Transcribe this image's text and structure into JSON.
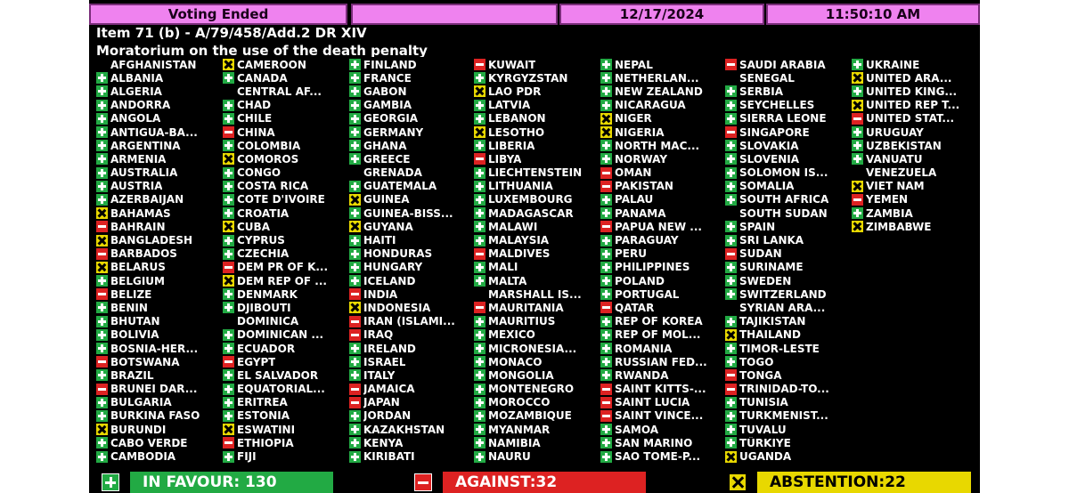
{
  "header": {
    "status": "Voting Ended",
    "date": "12/17/2024",
    "time": "11:50:10 AM"
  },
  "item": {
    "line1": "Item 71 (b) - A/79/458/Add.2 DR XIV",
    "line2": "Moratorium on the use of the death penalty"
  },
  "colors": {
    "favour": "#22aa44",
    "against": "#dd2222",
    "abstention": "#e8d800",
    "header": "#ef82ef"
  },
  "icons": {
    "Y": "plus-icon",
    "N": "minus-icon",
    "A": "x-icon",
    "": "none"
  },
  "columns": [
    [
      [
        "AFGHANISTAN",
        ""
      ],
      [
        "ALBANIA",
        "Y"
      ],
      [
        "ALGERIA",
        "Y"
      ],
      [
        "ANDORRA",
        "Y"
      ],
      [
        "ANGOLA",
        "Y"
      ],
      [
        "ANTIGUA-BA...",
        "Y"
      ],
      [
        "ARGENTINA",
        "Y"
      ],
      [
        "ARMENIA",
        "Y"
      ],
      [
        "AUSTRALIA",
        "Y"
      ],
      [
        "AUSTRIA",
        "Y"
      ],
      [
        "AZERBAIJAN",
        "Y"
      ],
      [
        "BAHAMAS",
        "A"
      ],
      [
        "BAHRAIN",
        "N"
      ],
      [
        "BANGLADESH",
        "A"
      ],
      [
        "BARBADOS",
        "N"
      ],
      [
        "BELARUS",
        "A"
      ],
      [
        "BELGIUM",
        "Y"
      ],
      [
        "BELIZE",
        "N"
      ],
      [
        "BENIN",
        "Y"
      ],
      [
        "BHUTAN",
        "Y"
      ],
      [
        "BOLIVIA",
        "Y"
      ],
      [
        "BOSNIA-HER...",
        "Y"
      ],
      [
        "BOTSWANA",
        "N"
      ],
      [
        "BRAZIL",
        "Y"
      ],
      [
        "BRUNEI DAR...",
        "N"
      ],
      [
        "BULGARIA",
        "Y"
      ],
      [
        "BURKINA FASO",
        "Y"
      ],
      [
        "BURUNDI",
        "A"
      ],
      [
        "CABO VERDE",
        "Y"
      ],
      [
        "CAMBODIA",
        "Y"
      ]
    ],
    [
      [
        "CAMEROON",
        "A"
      ],
      [
        "CANADA",
        "Y"
      ],
      [
        "CENTRAL AF...",
        ""
      ],
      [
        "CHAD",
        "Y"
      ],
      [
        "CHILE",
        "Y"
      ],
      [
        "CHINA",
        "N"
      ],
      [
        "COLOMBIA",
        "Y"
      ],
      [
        "COMOROS",
        "A"
      ],
      [
        "CONGO",
        "Y"
      ],
      [
        "COSTA RICA",
        "Y"
      ],
      [
        "COTE D'IVOIRE",
        "Y"
      ],
      [
        "CROATIA",
        "Y"
      ],
      [
        "CUBA",
        "A"
      ],
      [
        "CYPRUS",
        "Y"
      ],
      [
        "CZECHIA",
        "Y"
      ],
      [
        "DEM PR OF K...",
        "N"
      ],
      [
        "DEM REP OF ...",
        "A"
      ],
      [
        "DENMARK",
        "Y"
      ],
      [
        "DJIBOUTI",
        "Y"
      ],
      [
        "DOMINICA",
        ""
      ],
      [
        "DOMINICAN ...",
        "Y"
      ],
      [
        "ECUADOR",
        "Y"
      ],
      [
        "EGYPT",
        "N"
      ],
      [
        "EL SALVADOR",
        "Y"
      ],
      [
        "EQUATORIAL...",
        "Y"
      ],
      [
        "ERITREA",
        "Y"
      ],
      [
        "ESTONIA",
        "Y"
      ],
      [
        "ESWATINI",
        "A"
      ],
      [
        "ETHIOPIA",
        "N"
      ],
      [
        "FIJI",
        "Y"
      ]
    ],
    [
      [
        "FINLAND",
        "Y"
      ],
      [
        "FRANCE",
        "Y"
      ],
      [
        "GABON",
        "Y"
      ],
      [
        "GAMBIA",
        "Y"
      ],
      [
        "GEORGIA",
        "Y"
      ],
      [
        "GERMANY",
        "Y"
      ],
      [
        "GHANA",
        "Y"
      ],
      [
        "GREECE",
        "Y"
      ],
      [
        "GRENADA",
        ""
      ],
      [
        "GUATEMALA",
        "Y"
      ],
      [
        "GUINEA",
        "A"
      ],
      [
        "GUINEA-BISS...",
        "Y"
      ],
      [
        "GUYANA",
        "A"
      ],
      [
        "HAITI",
        "Y"
      ],
      [
        "HONDURAS",
        "Y"
      ],
      [
        "HUNGARY",
        "Y"
      ],
      [
        "ICELAND",
        "Y"
      ],
      [
        "INDIA",
        "N"
      ],
      [
        "INDONESIA",
        "A"
      ],
      [
        "IRAN (ISLAMI...",
        "N"
      ],
      [
        "IRAQ",
        "N"
      ],
      [
        "IRELAND",
        "Y"
      ],
      [
        "ISRAEL",
        "Y"
      ],
      [
        "ITALY",
        "Y"
      ],
      [
        "JAMAICA",
        "N"
      ],
      [
        "JAPAN",
        "N"
      ],
      [
        "JORDAN",
        "Y"
      ],
      [
        "KAZAKHSTAN",
        "Y"
      ],
      [
        "KENYA",
        "Y"
      ],
      [
        "KIRIBATI",
        "Y"
      ]
    ],
    [
      [
        "KUWAIT",
        "N"
      ],
      [
        "KYRGYZSTAN",
        "Y"
      ],
      [
        "LAO PDR",
        "A"
      ],
      [
        "LATVIA",
        "Y"
      ],
      [
        "LEBANON",
        "Y"
      ],
      [
        "LESOTHO",
        "A"
      ],
      [
        "LIBERIA",
        "Y"
      ],
      [
        "LIBYA",
        "N"
      ],
      [
        "LIECHTENSTEIN",
        "Y"
      ],
      [
        "LITHUANIA",
        "Y"
      ],
      [
        "LUXEMBOURG",
        "Y"
      ],
      [
        "MADAGASCAR",
        "Y"
      ],
      [
        "MALAWI",
        "Y"
      ],
      [
        "MALAYSIA",
        "Y"
      ],
      [
        "MALDIVES",
        "N"
      ],
      [
        "MALI",
        "Y"
      ],
      [
        "MALTA",
        "Y"
      ],
      [
        "MARSHALL IS...",
        ""
      ],
      [
        "MAURITANIA",
        "N"
      ],
      [
        "MAURITIUS",
        "Y"
      ],
      [
        "MEXICO",
        "Y"
      ],
      [
        "MICRONESIA...",
        "Y"
      ],
      [
        "MONACO",
        "Y"
      ],
      [
        "MONGOLIA",
        "Y"
      ],
      [
        "MONTENEGRO",
        "Y"
      ],
      [
        "MOROCCO",
        "Y"
      ],
      [
        "MOZAMBIQUE",
        "Y"
      ],
      [
        "MYANMAR",
        "Y"
      ],
      [
        "NAMIBIA",
        "Y"
      ],
      [
        "NAURU",
        "Y"
      ]
    ],
    [
      [
        "NEPAL",
        "Y"
      ],
      [
        "NETHERLAN...",
        "Y"
      ],
      [
        "NEW ZEALAND",
        "Y"
      ],
      [
        "NICARAGUA",
        "Y"
      ],
      [
        "NIGER",
        "A"
      ],
      [
        "NIGERIA",
        "A"
      ],
      [
        "NORTH MAC...",
        "Y"
      ],
      [
        "NORWAY",
        "Y"
      ],
      [
        "OMAN",
        "N"
      ],
      [
        "PAKISTAN",
        "N"
      ],
      [
        "PALAU",
        "Y"
      ],
      [
        "PANAMA",
        "Y"
      ],
      [
        "PAPUA NEW ...",
        "N"
      ],
      [
        "PARAGUAY",
        "Y"
      ],
      [
        "PERU",
        "Y"
      ],
      [
        "PHILIPPINES",
        "Y"
      ],
      [
        "POLAND",
        "Y"
      ],
      [
        "PORTUGAL",
        "Y"
      ],
      [
        "QATAR",
        "N"
      ],
      [
        "REP OF KOREA",
        "Y"
      ],
      [
        "REP OF MOL...",
        "Y"
      ],
      [
        "ROMANIA",
        "Y"
      ],
      [
        "RUSSIAN FED...",
        "Y"
      ],
      [
        "RWANDA",
        "Y"
      ],
      [
        "SAINT KITTS-...",
        "N"
      ],
      [
        "SAINT LUCIA",
        "N"
      ],
      [
        "SAINT VINCE...",
        "N"
      ],
      [
        "SAMOA",
        "Y"
      ],
      [
        "SAN MARINO",
        "Y"
      ],
      [
        "SAO TOME-P...",
        "Y"
      ]
    ],
    [
      [
        "SAUDI ARABIA",
        "N"
      ],
      [
        "SENEGAL",
        ""
      ],
      [
        "SERBIA",
        "Y"
      ],
      [
        "SEYCHELLES",
        "Y"
      ],
      [
        "SIERRA LEONE",
        "Y"
      ],
      [
        "SINGAPORE",
        "N"
      ],
      [
        "SLOVAKIA",
        "Y"
      ],
      [
        "SLOVENIA",
        "Y"
      ],
      [
        "SOLOMON IS...",
        "Y"
      ],
      [
        "SOMALIA",
        "Y"
      ],
      [
        "SOUTH AFRICA",
        "Y"
      ],
      [
        "SOUTH SUDAN",
        ""
      ],
      [
        "SPAIN",
        "Y"
      ],
      [
        "SRI LANKA",
        "Y"
      ],
      [
        "SUDAN",
        "N"
      ],
      [
        "SURINAME",
        "Y"
      ],
      [
        "SWEDEN",
        "Y"
      ],
      [
        "SWITZERLAND",
        "Y"
      ],
      [
        "SYRIAN ARA...",
        ""
      ],
      [
        "TAJIKISTAN",
        "Y"
      ],
      [
        "THAILAND",
        "A"
      ],
      [
        "TIMOR-LESTE",
        "Y"
      ],
      [
        "TOGO",
        "Y"
      ],
      [
        "TONGA",
        "N"
      ],
      [
        "TRINIDAD-TO...",
        "N"
      ],
      [
        "TUNISIA",
        "Y"
      ],
      [
        "TURKMENIST...",
        "Y"
      ],
      [
        "TUVALU",
        "Y"
      ],
      [
        "TÜRKIYE",
        "Y"
      ],
      [
        "UGANDA",
        "A"
      ]
    ],
    [
      [
        "UKRAINE",
        "Y"
      ],
      [
        "UNITED ARA...",
        "A"
      ],
      [
        "UNITED KING...",
        "Y"
      ],
      [
        "UNITED REP T...",
        "A"
      ],
      [
        "UNITED STAT...",
        "N"
      ],
      [
        "URUGUAY",
        "Y"
      ],
      [
        "UZBEKISTAN",
        "Y"
      ],
      [
        "VANUATU",
        "Y"
      ],
      [
        "VENEZUELA",
        ""
      ],
      [
        "VIET NAM",
        "A"
      ],
      [
        "YEMEN",
        "N"
      ],
      [
        "ZAMBIA",
        "Y"
      ],
      [
        "ZIMBABWE",
        "A"
      ]
    ]
  ],
  "totals": {
    "favour": "IN FAVOUR: 130",
    "against": "AGAINST:32",
    "abstention": "ABSTENTION:22"
  }
}
